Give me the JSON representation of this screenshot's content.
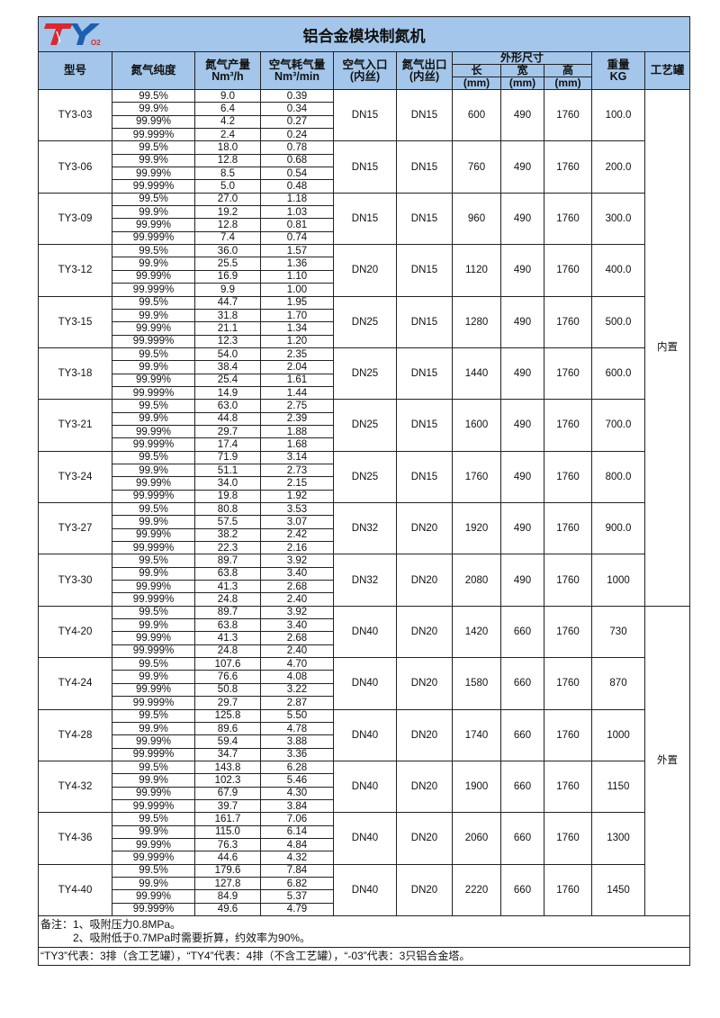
{
  "logo": {
    "text": "TY",
    "sub": "O2",
    "colors": {
      "t": "#d9282f",
      "y": "#1f5fae"
    }
  },
  "title": "铝合金模块制氮机",
  "headers": {
    "model": "型号",
    "purity": "氮气纯度",
    "output": "氮气产量",
    "output_unit": "Nm³/h",
    "air": "空气耗气量",
    "air_unit": "Nm³/min",
    "air_in": "空气入口",
    "air_in_sub": "(内丝)",
    "n2_out": "氮气出口",
    "n2_out_sub": "(内丝)",
    "dims": "外形尺寸",
    "length": "长",
    "width": "宽",
    "height": "高",
    "mm": "(mm)",
    "weight": "重量",
    "weight_unit": "KG",
    "tank": "工艺罐"
  },
  "purities": [
    "99.5%",
    "99.9%",
    "99.99%",
    "99.999%"
  ],
  "tank_groups": [
    {
      "label": "内置",
      "count": 10
    },
    {
      "label": "外置",
      "count": 6
    }
  ],
  "rows": [
    {
      "model": "TY3-03",
      "output": [
        "9.0",
        "6.4",
        "4.2",
        "2.4"
      ],
      "air": [
        "0.39",
        "0.34",
        "0.27",
        "0.24"
      ],
      "air_in": "DN15",
      "n2_out": "DN15",
      "length": "600",
      "width": "490",
      "height": "1760",
      "weight": "100.0"
    },
    {
      "model": "TY3-06",
      "output": [
        "18.0",
        "12.8",
        "8.5",
        "5.0"
      ],
      "air": [
        "0.78",
        "0.68",
        "0.54",
        "0.48"
      ],
      "air_in": "DN15",
      "n2_out": "DN15",
      "length": "760",
      "width": "490",
      "height": "1760",
      "weight": "200.0"
    },
    {
      "model": "TY3-09",
      "output": [
        "27.0",
        "19.2",
        "12.8",
        "7.4"
      ],
      "air": [
        "1.18",
        "1.03",
        "0.81",
        "0.74"
      ],
      "air_in": "DN15",
      "n2_out": "DN15",
      "length": "960",
      "width": "490",
      "height": "1760",
      "weight": "300.0"
    },
    {
      "model": "TY3-12",
      "output": [
        "36.0",
        "25.5",
        "16.9",
        "9.9"
      ],
      "air": [
        "1.57",
        "1.36",
        "1.10",
        "1.00"
      ],
      "air_in": "DN20",
      "n2_out": "DN15",
      "length": "1120",
      "width": "490",
      "height": "1760",
      "weight": "400.0"
    },
    {
      "model": "TY3-15",
      "output": [
        "44.7",
        "31.8",
        "21.1",
        "12.3"
      ],
      "air": [
        "1.95",
        "1.70",
        "1.34",
        "1.20"
      ],
      "air_in": "DN25",
      "n2_out": "DN15",
      "length": "1280",
      "width": "490",
      "height": "1760",
      "weight": "500.0"
    },
    {
      "model": "TY3-18",
      "output": [
        "54.0",
        "38.4",
        "25.4",
        "14.9"
      ],
      "air": [
        "2.35",
        "2.04",
        "1.61",
        "1.44"
      ],
      "air_in": "DN25",
      "n2_out": "DN15",
      "length": "1440",
      "width": "490",
      "height": "1760",
      "weight": "600.0"
    },
    {
      "model": "TY3-21",
      "output": [
        "63.0",
        "44.8",
        "29.7",
        "17.4"
      ],
      "air": [
        "2.75",
        "2.39",
        "1.88",
        "1.68"
      ],
      "air_in": "DN25",
      "n2_out": "DN15",
      "length": "1600",
      "width": "490",
      "height": "1760",
      "weight": "700.0"
    },
    {
      "model": "TY3-24",
      "output": [
        "71.9",
        "51.1",
        "34.0",
        "19.8"
      ],
      "air": [
        "3.14",
        "2.73",
        "2.15",
        "1.92"
      ],
      "air_in": "DN25",
      "n2_out": "DN15",
      "length": "1760",
      "width": "490",
      "height": "1760",
      "weight": "800.0"
    },
    {
      "model": "TY3-27",
      "output": [
        "80.8",
        "57.5",
        "38.2",
        "22.3"
      ],
      "air": [
        "3.53",
        "3.07",
        "2.42",
        "2.16"
      ],
      "air_in": "DN32",
      "n2_out": "DN20",
      "length": "1920",
      "width": "490",
      "height": "1760",
      "weight": "900.0"
    },
    {
      "model": "TY3-30",
      "output": [
        "89.7",
        "63.8",
        "41.3",
        "24.8"
      ],
      "air": [
        "3.92",
        "3.40",
        "2.68",
        "2.40"
      ],
      "air_in": "DN32",
      "n2_out": "DN20",
      "length": "2080",
      "width": "490",
      "height": "1760",
      "weight": "1000"
    },
    {
      "model": "TY4-20",
      "output": [
        "89.7",
        "63.8",
        "41.3",
        "24.8"
      ],
      "air": [
        "3.92",
        "3.40",
        "2.68",
        "2.40"
      ],
      "air_in": "DN40",
      "n2_out": "DN20",
      "length": "1420",
      "width": "660",
      "height": "1760",
      "weight": "730"
    },
    {
      "model": "TY4-24",
      "output": [
        "107.6",
        "76.6",
        "50.8",
        "29.7"
      ],
      "air": [
        "4.70",
        "4.08",
        "3.22",
        "2.87"
      ],
      "air_in": "DN40",
      "n2_out": "DN20",
      "length": "1580",
      "width": "660",
      "height": "1760",
      "weight": "870"
    },
    {
      "model": "TY4-28",
      "output": [
        "125.8",
        "89.6",
        "59.4",
        "34.7"
      ],
      "air": [
        "5.50",
        "4.78",
        "3.88",
        "3.36"
      ],
      "air_in": "DN40",
      "n2_out": "DN20",
      "length": "1740",
      "width": "660",
      "height": "1760",
      "weight": "1000"
    },
    {
      "model": "TY4-32",
      "output": [
        "143.8",
        "102.3",
        "67.9",
        "39.7"
      ],
      "air": [
        "6.28",
        "5.46",
        "4.30",
        "3.84"
      ],
      "air_in": "DN40",
      "n2_out": "DN20",
      "length": "1900",
      "width": "660",
      "height": "1760",
      "weight": "1150"
    },
    {
      "model": "TY4-36",
      "output": [
        "161.7",
        "115.0",
        "76.3",
        "44.6"
      ],
      "air": [
        "7.06",
        "6.14",
        "4.84",
        "4.32"
      ],
      "air_in": "DN40",
      "n2_out": "DN20",
      "length": "2060",
      "width": "660",
      "height": "1760",
      "weight": "1300"
    },
    {
      "model": "TY4-40",
      "output": [
        "179.6",
        "127.8",
        "84.9",
        "49.6"
      ],
      "air": [
        "7.84",
        "6.82",
        "5.37",
        "4.79"
      ],
      "air_in": "DN40",
      "n2_out": "DN20",
      "length": "2220",
      "width": "660",
      "height": "1760",
      "weight": "1450"
    }
  ],
  "notes": {
    "line1": "备注：1、吸附压力0.8MPa。",
    "line2": "2、吸附低于0.7MPa时需要折算，约效率为90%。",
    "legend": "“TY3”代表：3排（含工艺罐），“TY4”代表：4排（不含工艺罐），“-03”代表：3只铝合金塔。"
  }
}
